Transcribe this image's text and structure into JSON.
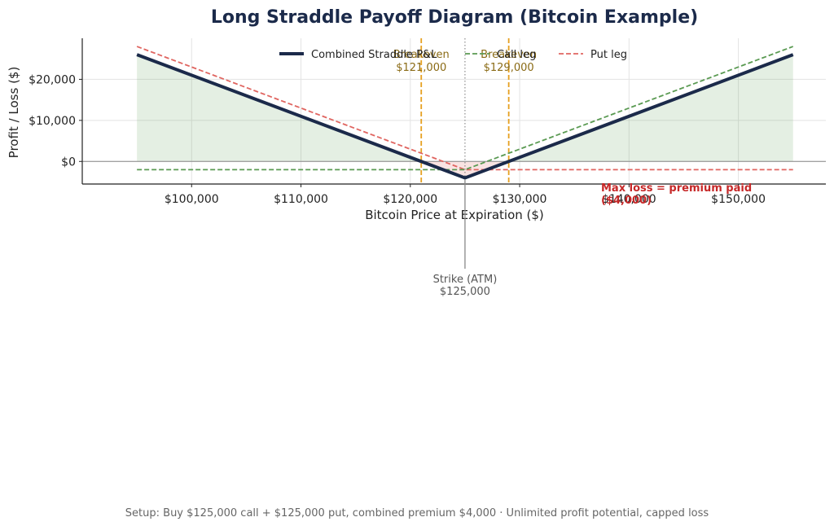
{
  "chart_data": {
    "type": "line",
    "title": "Long Straddle Payoff Diagram (Bitcoin Example)",
    "xlabel": "Bitcoin Price at Expiration ($)",
    "ylabel": "Profit / Loss ($)",
    "xlim": [
      90000,
      158000
    ],
    "ylim": [
      -5500,
      30000
    ],
    "x_ticks": [
      100000,
      110000,
      120000,
      130000,
      140000,
      150000
    ],
    "x_tick_labels": [
      "$100,000",
      "$110,000",
      "$120,000",
      "$130,000",
      "$140,000",
      "$150,000"
    ],
    "y_ticks": [
      0,
      10000,
      20000
    ],
    "y_tick_labels": [
      "$0",
      "$10,000",
      "$20,000"
    ],
    "grid": true,
    "legend_position": "top-center",
    "series": [
      {
        "name": "Combined Straddle P&L",
        "style": "solid",
        "color": "#1b2a4a",
        "points": [
          [
            95000,
            26000
          ],
          [
            125000,
            -4000
          ],
          [
            155000,
            26000
          ]
        ]
      },
      {
        "name": "Call leg",
        "style": "dashed",
        "color": "#5a9a52",
        "points": [
          [
            95000,
            -2000
          ],
          [
            125000,
            -2000
          ],
          [
            155000,
            28000
          ]
        ]
      },
      {
        "name": "Put leg",
        "style": "dashed",
        "color": "#e06560",
        "points": [
          [
            95000,
            28000
          ],
          [
            125000,
            -2000
          ],
          [
            155000,
            -2000
          ]
        ]
      }
    ],
    "fill": {
      "profit_color": "#5a9a52",
      "loss_color": "#e06560"
    },
    "annotations": {
      "breakeven_label": "Breakeven",
      "breakeven_low": {
        "x": 121000,
        "value_label": "$121,000"
      },
      "breakeven_high": {
        "x": 129000,
        "value_label": "$129,000"
      },
      "breakeven_color": "#e6a020",
      "strike": {
        "x": 125000,
        "label": "Strike (ATM)",
        "value_label": "$125,000"
      },
      "max_loss": {
        "line1": "Max loss = premium paid",
        "line2": "($4,000)"
      }
    },
    "footer": "Setup: Buy $125,000 call + $125,000 put, combined premium $4,000  ·  Unlimited profit potential, capped loss"
  }
}
